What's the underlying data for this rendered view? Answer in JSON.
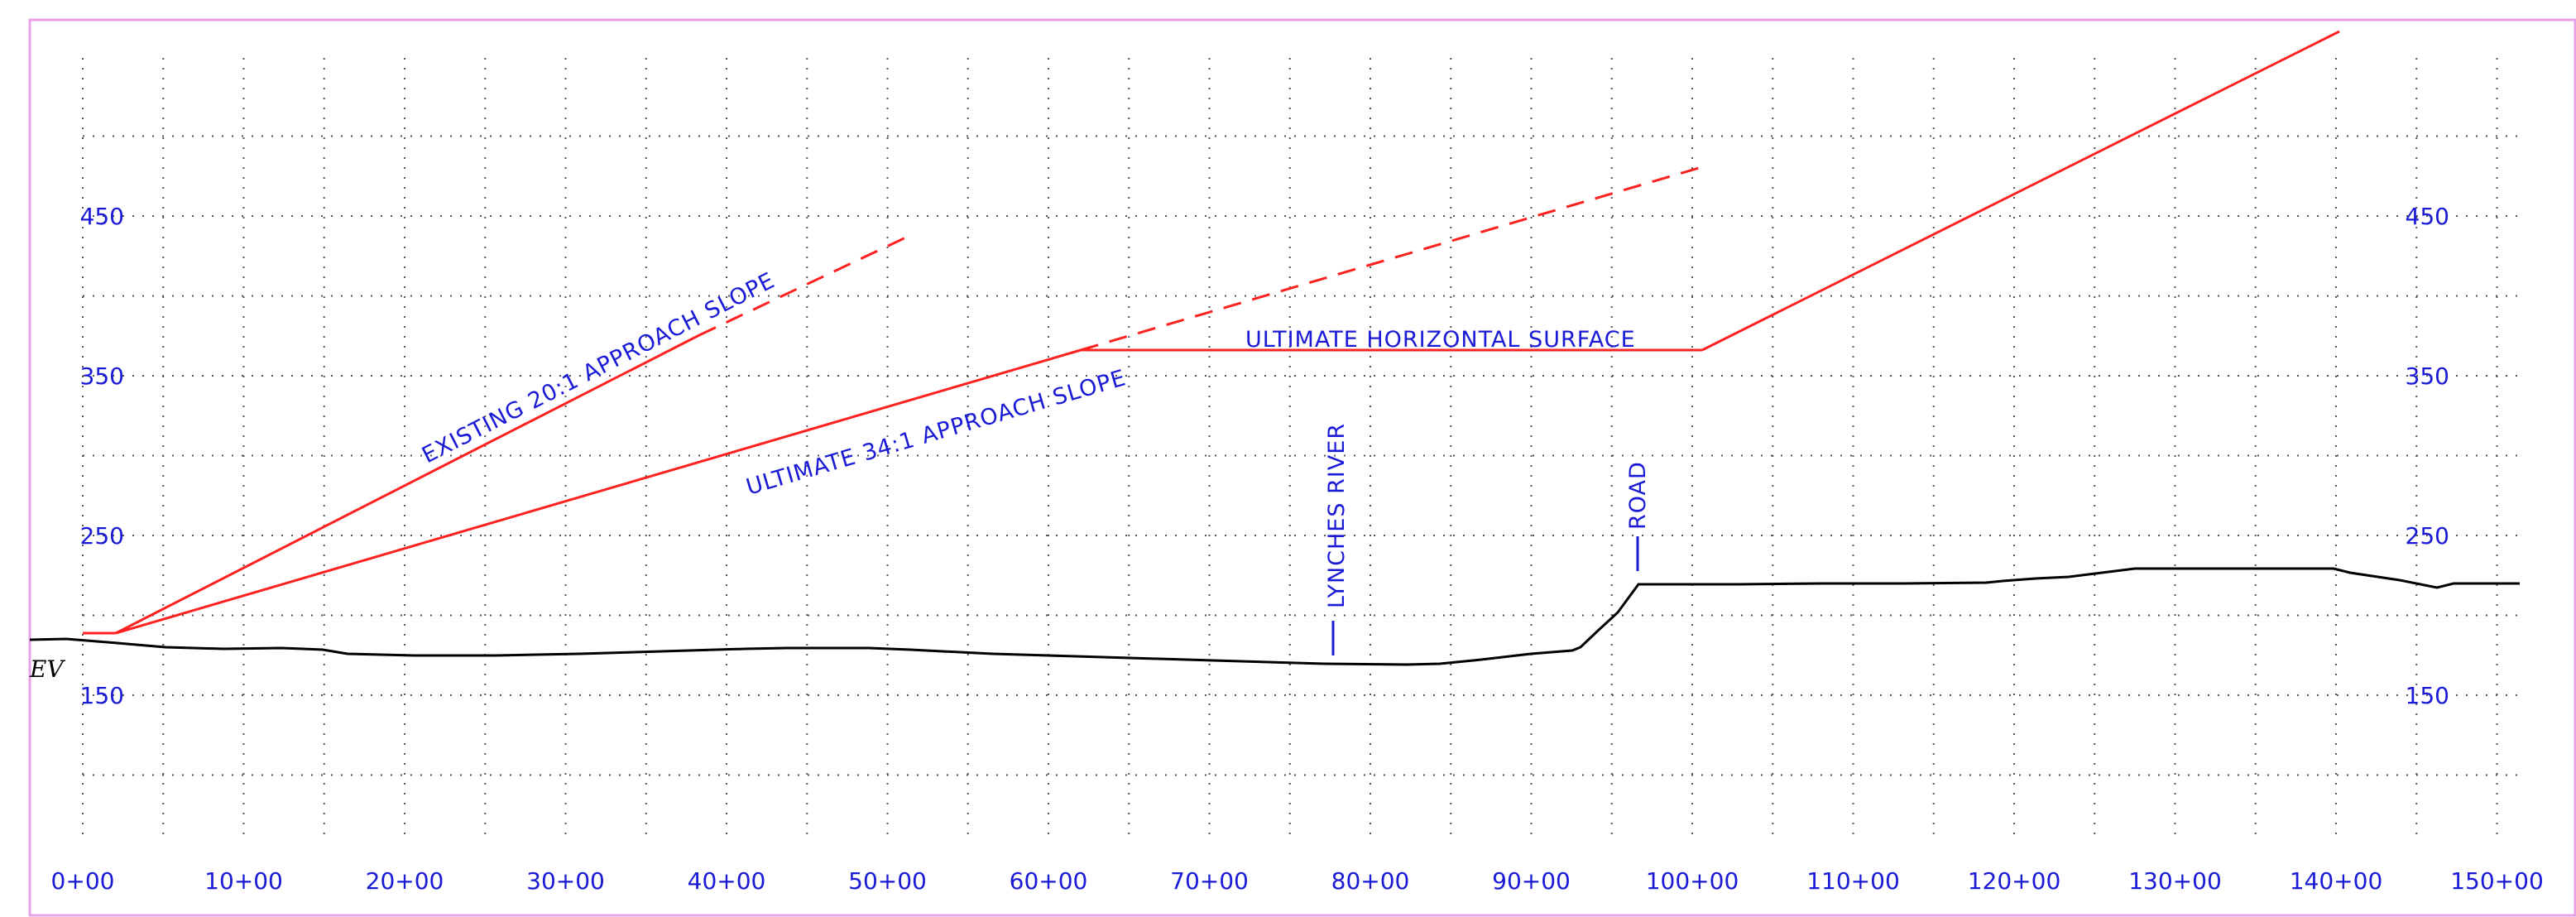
{
  "diagram": {
    "type": "profile",
    "left_label": "EV",
    "x_ticks": [
      "0+00",
      "10+00",
      "20+00",
      "30+00",
      "40+00",
      "50+00",
      "60+00",
      "70+00",
      "80+00",
      "90+00",
      "100+00",
      "110+00",
      "120+00",
      "130+00",
      "140+00",
      "150+00"
    ],
    "y_ticks": [
      "150",
      "250",
      "350",
      "450"
    ],
    "annotations": {
      "existing_slope": "EXISTING 20:1 APPROACH SLOPE",
      "ultimate_slope": "ULTIMATE 34:1 APPROACH SLOPE",
      "horizontal_surface": "ULTIMATE HORIZONTAL SURFACE",
      "river": "LYNCHES RIVER",
      "road": "ROAD"
    },
    "colors": {
      "text": "#1a1ad6",
      "surfaces": "#ff2020",
      "ground": "#000000",
      "border": "#e8a0e8",
      "grid": "#555555"
    }
  }
}
